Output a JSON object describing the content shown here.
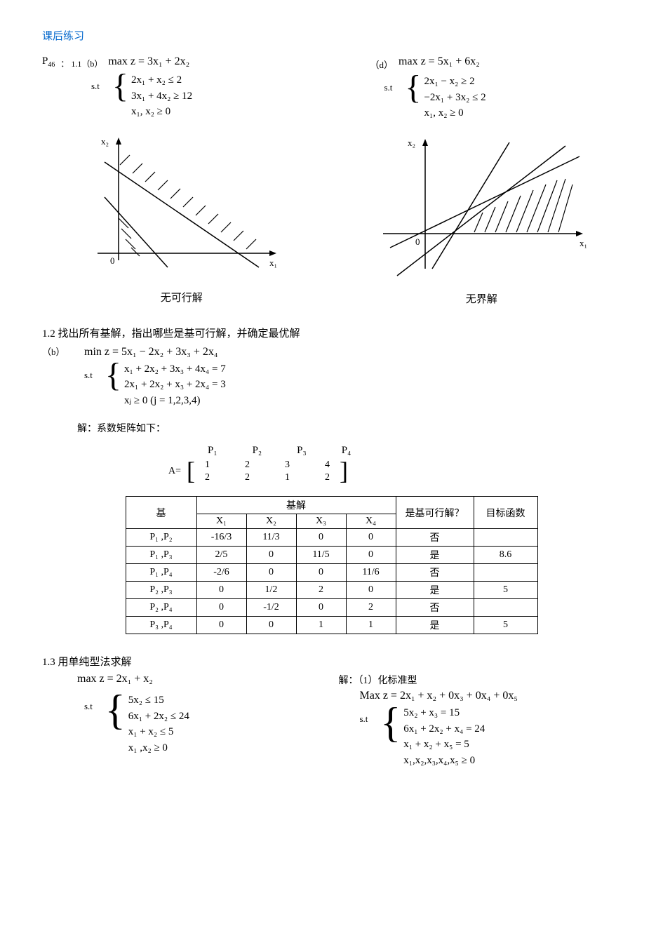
{
  "header": "课后练习",
  "p11": {
    "prefix": "P",
    "prefix_sub": "46",
    "label_b": "： 1.1（b）",
    "obj_b": "max z = 3x₁ + 2x₂",
    "st": "s.t",
    "b_c1": "2x₁ + x₂ ≤ 2",
    "b_c2": "3x₁ + 4x₂ ≥ 12",
    "b_c3": "x₁, x₂ ≥ 0",
    "caption_b": "无可行解",
    "label_d": "（d）",
    "obj_d": "max z = 5x₁ + 6x₂",
    "d_c1": "2x₁ − x₂ ≥ 2",
    "d_c2": "−2x₁ + 3x₂ ≤ 2",
    "d_c3": "x₁, x₂ ≥ 0",
    "caption_d": "无界解",
    "axis_x2": "x₂",
    "axis_x1": "x₁",
    "axis_0": "0"
  },
  "p12": {
    "title": "1.2  找出所有基解，指出哪些是基可行解，并确定最优解",
    "label": "（b）",
    "obj": "min z = 5x₁ − 2x₂ + 3x₃ + 2x₄",
    "st": "s.t",
    "c1": "x₁ + 2x₂ + 3x₃ + 4x₄ = 7",
    "c2": "2x₁ + 2x₂ + x₃ + 2x₄ = 3",
    "c3": "xⱼ ≥ 0 (j = 1,2,3,4)",
    "sol_label": "解：系数矩阵如下：",
    "P1": "P₁",
    "P2": "P₂",
    "P3": "P₃",
    "P4": "P₄",
    "A": "A=",
    "m": [
      [
        "1",
        "2",
        "3",
        "4"
      ],
      [
        "2",
        "2",
        "1",
        "2"
      ]
    ],
    "table": {
      "h_basis": "基",
      "h_sol": "基解",
      "h_x1": "X₁",
      "h_x2": "X₂",
      "h_x3": "X₃",
      "h_x4": "X₄",
      "h_bfs": "是基可行解？",
      "h_obj": "目标函数",
      "rows": [
        {
          "b": "P₁ ,P₂",
          "x1": "-16/3",
          "x2": "11/3",
          "x3": "0",
          "x4": "0",
          "bfs": "否",
          "obj": ""
        },
        {
          "b": "P₁ ,P₃",
          "x1": "2/5",
          "x2": "0",
          "x3": "11/5",
          "x4": "0",
          "bfs": "是",
          "obj": "8.6"
        },
        {
          "b": "P₁ ,P₄",
          "x1": "-2/6",
          "x2": "0",
          "x3": "0",
          "x4": "11/6",
          "bfs": "否",
          "obj": ""
        },
        {
          "b": "P₂ ,P₃",
          "x1": "0",
          "x2": "1/2",
          "x3": "2",
          "x4": "0",
          "bfs": "是",
          "obj": "5"
        },
        {
          "b": "P₂ ,P₄",
          "x1": "0",
          "x2": "-1/2",
          "x3": "0",
          "x4": "2",
          "bfs": "否",
          "obj": ""
        },
        {
          "b": "P₃ ,P₄",
          "x1": "0",
          "x2": "0",
          "x3": "1",
          "x4": "1",
          "bfs": "是",
          "obj": "5"
        }
      ]
    }
  },
  "p13": {
    "title": "1.3  用单纯型法求解",
    "obj_left": "max z = 2x₁ + x₂",
    "st": "s.t",
    "l_c1": "5x₂ ≤ 15",
    "l_c2": "6x₁ + 2x₂ ≤ 24",
    "l_c3": "x₁ + x₂ ≤ 5",
    "l_c4": "x₁ ,x₂ ≥ 0",
    "sol_label": "解：（1）化标准型",
    "obj_right": "Max z = 2x₁ + x₂ + 0x₃ + 0x₄ + 0x₅",
    "r_c1": "5x₂ + x₃ = 15",
    "r_c2": "6x₁ + 2x₂ + x₄ = 24",
    "r_c3": "x₁ + x₂ + x₅ = 5",
    "r_c4": "x₁,x₂,x₃,x₄,x₅ ≥ 0"
  }
}
